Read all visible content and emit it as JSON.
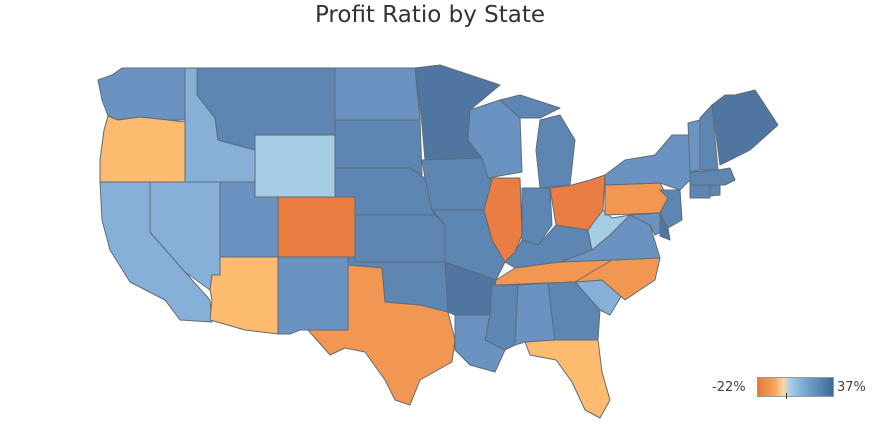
{
  "title": "Profit Ratio by State",
  "legend": {
    "min_label": "-22%",
    "max_label": "37%",
    "min_value": -22,
    "max_value": 37
  },
  "colors": {
    "strong_blue": "#4f76a0",
    "blue": "#5e86b3",
    "mid_blue": "#6b93c1",
    "light_blue": "#86b0d8",
    "pale_blue": "#a5cde4",
    "orange": "#ea7d41",
    "mid_orange": "#f29752",
    "light_orange": "#fdbb6f"
  },
  "states": [
    {
      "name": "Washington",
      "color": "mid_blue"
    },
    {
      "name": "Oregon",
      "color": "light_orange"
    },
    {
      "name": "California",
      "color": "light_blue"
    },
    {
      "name": "Nevada",
      "color": "light_blue"
    },
    {
      "name": "Idaho",
      "color": "light_blue"
    },
    {
      "name": "Montana",
      "color": "blue"
    },
    {
      "name": "Wyoming",
      "color": "pale_blue"
    },
    {
      "name": "Utah",
      "color": "mid_blue"
    },
    {
      "name": "Arizona",
      "color": "light_orange"
    },
    {
      "name": "Colorado",
      "color": "orange"
    },
    {
      "name": "New Mexico",
      "color": "mid_blue"
    },
    {
      "name": "North Dakota",
      "color": "mid_blue"
    },
    {
      "name": "South Dakota",
      "color": "blue"
    },
    {
      "name": "Nebraska",
      "color": "blue"
    },
    {
      "name": "Kansas",
      "color": "blue"
    },
    {
      "name": "Oklahoma",
      "color": "blue"
    },
    {
      "name": "Texas",
      "color": "mid_orange"
    },
    {
      "name": "Minnesota",
      "color": "strong_blue"
    },
    {
      "name": "Iowa",
      "color": "blue"
    },
    {
      "name": "Missouri",
      "color": "blue"
    },
    {
      "name": "Arkansas",
      "color": "strong_blue"
    },
    {
      "name": "Louisiana",
      "color": "mid_blue"
    },
    {
      "name": "Wisconsin",
      "color": "mid_blue"
    },
    {
      "name": "Illinois",
      "color": "orange"
    },
    {
      "name": "Michigan",
      "color": "blue"
    },
    {
      "name": "Indiana",
      "color": "blue"
    },
    {
      "name": "Ohio",
      "color": "orange"
    },
    {
      "name": "Kentucky",
      "color": "blue"
    },
    {
      "name": "Tennessee",
      "color": "mid_orange"
    },
    {
      "name": "Mississippi",
      "color": "blue"
    },
    {
      "name": "Alabama",
      "color": "mid_blue"
    },
    {
      "name": "Georgia",
      "color": "blue"
    },
    {
      "name": "Florida",
      "color": "light_orange"
    },
    {
      "name": "South Carolina",
      "color": "light_blue"
    },
    {
      "name": "North Carolina",
      "color": "mid_orange"
    },
    {
      "name": "Virginia",
      "color": "mid_blue"
    },
    {
      "name": "West Virginia",
      "color": "pale_blue"
    },
    {
      "name": "Pennsylvania",
      "color": "mid_orange"
    },
    {
      "name": "New York",
      "color": "mid_blue"
    },
    {
      "name": "New Jersey",
      "color": "blue"
    },
    {
      "name": "Maryland",
      "color": "mid_blue"
    },
    {
      "name": "Delaware",
      "color": "strong_blue"
    },
    {
      "name": "Vermont",
      "color": "mid_blue"
    },
    {
      "name": "New Hampshire",
      "color": "blue"
    },
    {
      "name": "Maine",
      "color": "strong_blue"
    },
    {
      "name": "Massachusetts",
      "color": "blue"
    },
    {
      "name": "Connecticut",
      "color": "blue"
    },
    {
      "name": "Rhode Island",
      "color": "blue"
    }
  ]
}
